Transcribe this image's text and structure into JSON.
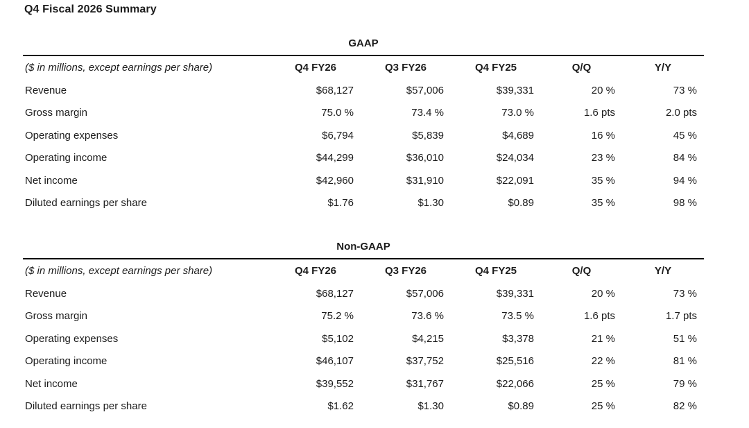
{
  "page_title": "Q4 Fiscal 2026 Summary",
  "colors": {
    "text": "#1c1c1c",
    "rule": "#000000",
    "background": "#ffffff"
  },
  "tables": [
    {
      "title": "GAAP",
      "unit_note": "($ in millions, except earnings per share)",
      "columns": [
        "Q4 FY26",
        "Q3 FY26",
        "Q4 FY25",
        "Q/Q",
        "Y/Y"
      ],
      "rows": [
        {
          "label": "Revenue",
          "values": [
            "$68,127",
            "$57,006",
            "$39,331",
            "20 %",
            "73 %"
          ]
        },
        {
          "label": "Gross margin",
          "values": [
            "75.0 %",
            "73.4 %",
            "73.0 %",
            "1.6 pts",
            "2.0 pts"
          ]
        },
        {
          "label": "Operating expenses",
          "values": [
            "$6,794",
            "$5,839",
            "$4,689",
            "16 %",
            "45 %"
          ]
        },
        {
          "label": "Operating income",
          "values": [
            "$44,299",
            "$36,010",
            "$24,034",
            "23 %",
            "84 %"
          ]
        },
        {
          "label": "Net income",
          "values": [
            "$42,960",
            "$31,910",
            "$22,091",
            "35 %",
            "94 %"
          ]
        },
        {
          "label": "Diluted earnings per share",
          "values": [
            "$1.76",
            "$1.30",
            "$0.89",
            "35 %",
            "98 %"
          ]
        }
      ]
    },
    {
      "title": "Non-GAAP",
      "unit_note": "($ in millions, except earnings per share)",
      "columns": [
        "Q4 FY26",
        "Q3 FY26",
        "Q4 FY25",
        "Q/Q",
        "Y/Y"
      ],
      "rows": [
        {
          "label": "Revenue",
          "values": [
            "$68,127",
            "$57,006",
            "$39,331",
            "20 %",
            "73 %"
          ]
        },
        {
          "label": "Gross margin",
          "values": [
            "75.2 %",
            "73.6 %",
            "73.5 %",
            "1.6 pts",
            "1.7 pts"
          ]
        },
        {
          "label": "Operating expenses",
          "values": [
            "$5,102",
            "$4,215",
            "$3,378",
            "21 %",
            "51 %"
          ]
        },
        {
          "label": "Operating income",
          "values": [
            "$46,107",
            "$37,752",
            "$25,516",
            "22 %",
            "81 %"
          ]
        },
        {
          "label": "Net income",
          "values": [
            "$39,552",
            "$31,767",
            "$22,066",
            "25 %",
            "79 %"
          ]
        },
        {
          "label": "Diluted earnings per share",
          "values": [
            "$1.62",
            "$1.30",
            "$0.89",
            "25 %",
            "82 %"
          ]
        }
      ]
    }
  ]
}
